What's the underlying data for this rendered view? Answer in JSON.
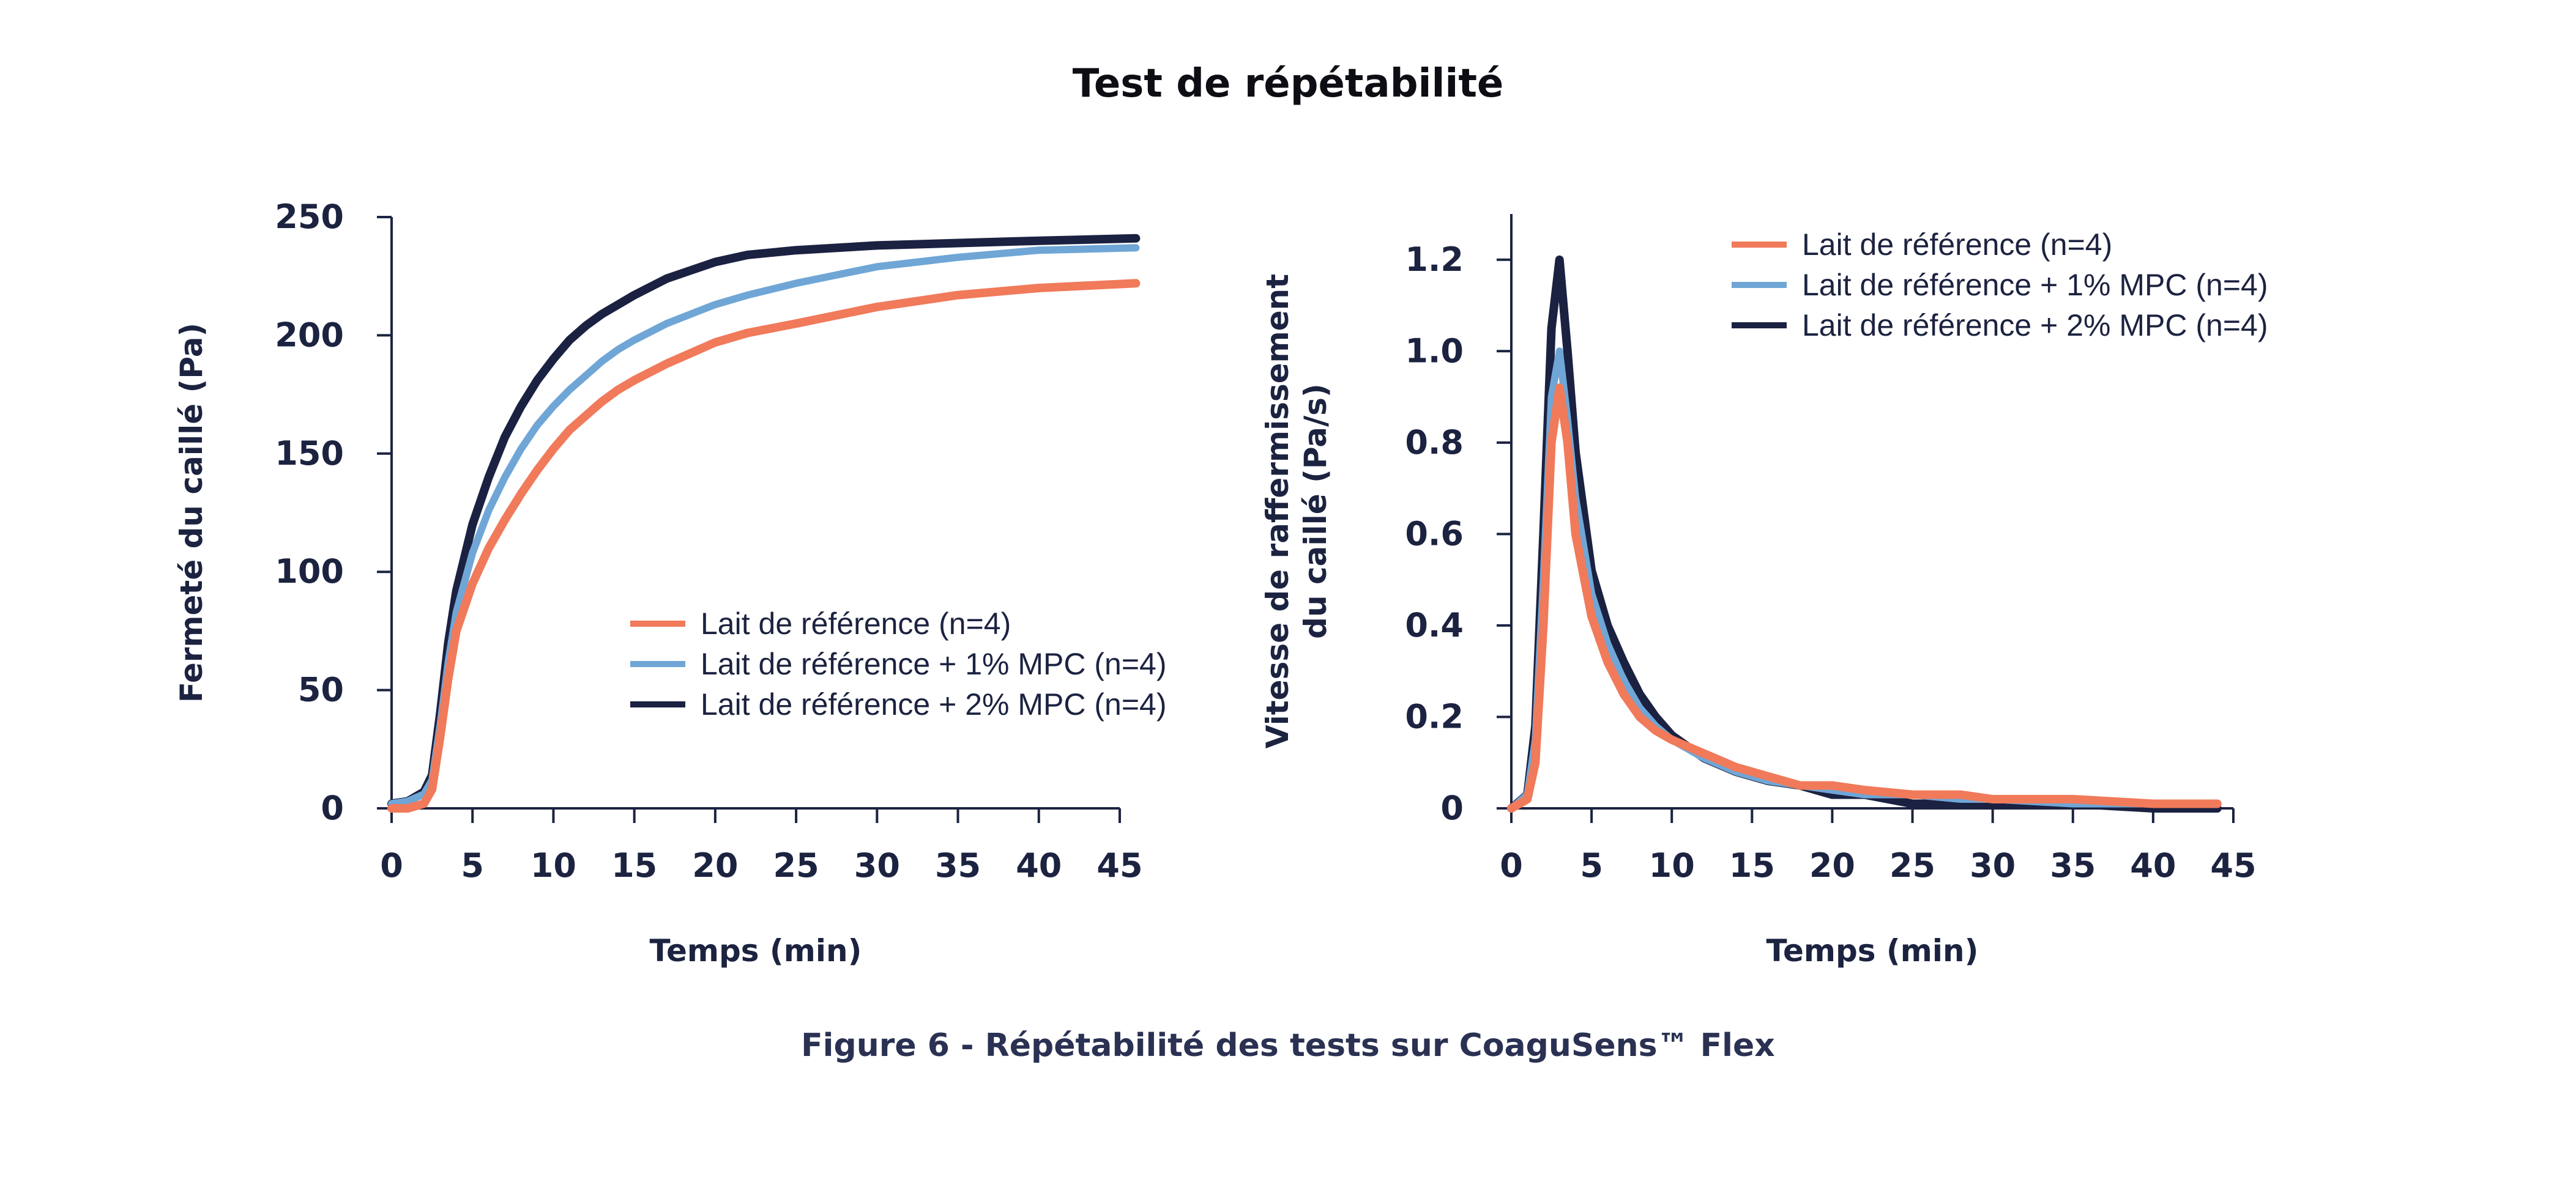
{
  "title": "Test de répétabilité",
  "caption": "Figure 6 - Répétabilité des tests sur  CoaguSens™ Flex",
  "colors": {
    "reference": "#f07a5a",
    "mpc1": "#6fa6d6",
    "mpc2": "#1b2141",
    "axis": "#1c2340"
  },
  "chart_data": [
    {
      "type": "line",
      "title": "",
      "xlabel": "Temps (min)",
      "ylabel": "Fermeté du caillé (Pa)",
      "xlim": [
        0,
        45
      ],
      "ylim": [
        0,
        250
      ],
      "xticks": [
        0,
        5,
        10,
        15,
        20,
        25,
        30,
        35,
        40,
        45
      ],
      "yticks": [
        0,
        50,
        100,
        150,
        200,
        250
      ],
      "legend_position": "lower-right",
      "series": [
        {
          "name": "Lait de référence (n=4)",
          "color_key": "reference",
          "x": [
            0,
            1,
            2,
            2.5,
            3,
            3.5,
            4,
            5,
            6,
            7,
            8,
            9,
            10,
            11,
            12,
            13,
            14,
            15,
            17,
            20,
            22,
            25,
            30,
            35,
            40,
            46
          ],
          "y": [
            0,
            0,
            2,
            8,
            30,
            55,
            75,
            95,
            110,
            122,
            133,
            143,
            152,
            160,
            166,
            172,
            177,
            181,
            188,
            197,
            201,
            205,
            212,
            217,
            220,
            222
          ]
        },
        {
          "name": "Lait de référence + 1% MPC (n=4)",
          "color_key": "mpc1",
          "x": [
            0,
            1,
            2,
            2.5,
            3,
            3.5,
            4,
            5,
            6,
            7,
            8,
            9,
            10,
            11,
            12,
            13,
            14,
            15,
            17,
            20,
            22,
            25,
            30,
            35,
            40,
            46
          ],
          "y": [
            2,
            3,
            6,
            12,
            35,
            62,
            83,
            108,
            126,
            140,
            152,
            162,
            170,
            177,
            183,
            189,
            194,
            198,
            205,
            213,
            217,
            222,
            229,
            233,
            236,
            237
          ]
        },
        {
          "name": "Lait de référence + 2% MPC (n=4)",
          "color_key": "mpc2",
          "x": [
            0,
            1,
            2,
            2.5,
            3,
            3.5,
            4,
            5,
            6,
            7,
            8,
            9,
            10,
            11,
            12,
            13,
            14,
            15,
            17,
            20,
            22,
            25,
            30,
            35,
            40,
            46
          ],
          "y": [
            2,
            3,
            7,
            14,
            40,
            70,
            92,
            120,
            140,
            157,
            170,
            181,
            190,
            198,
            204,
            209,
            213,
            217,
            224,
            231,
            234,
            236,
            238,
            239,
            240,
            241
          ]
        }
      ]
    },
    {
      "type": "line",
      "title": "",
      "xlabel": "Temps (min)",
      "ylabel": "Vitesse de raffermissement du caillé (Pa/s)",
      "ylabel_lines": [
        "Vitesse de raffermissement",
        "du caillé (Pa/s)"
      ],
      "xlim": [
        0,
        45
      ],
      "ylim": [
        0,
        1.3
      ],
      "xticks": [
        0,
        5,
        10,
        15,
        20,
        25,
        30,
        35,
        40,
        45
      ],
      "yticks": [
        0,
        0.2,
        0.4,
        0.6,
        0.8,
        1.0,
        1.2
      ],
      "ytick_labels": [
        "0",
        "0.2",
        "0.4",
        "0.6",
        "0.8",
        "1.0",
        "1.2"
      ],
      "legend_position": "top-right",
      "series": [
        {
          "name": "Lait de référence (n=4)",
          "color_key": "reference",
          "x": [
            0,
            1,
            1.5,
            2,
            2.5,
            3,
            3.5,
            4,
            5,
            6,
            7,
            8,
            9,
            10,
            12,
            14,
            16,
            18,
            20,
            22,
            25,
            28,
            30,
            35,
            40,
            44
          ],
          "y": [
            0,
            0.02,
            0.1,
            0.4,
            0.8,
            0.92,
            0.8,
            0.6,
            0.42,
            0.32,
            0.25,
            0.2,
            0.17,
            0.15,
            0.12,
            0.09,
            0.07,
            0.05,
            0.05,
            0.04,
            0.03,
            0.03,
            0.02,
            0.02,
            0.01,
            0.01
          ]
        },
        {
          "name": "Lait de référence + 1% MPC (n=4)",
          "color_key": "mpc1",
          "x": [
            0,
            1,
            1.5,
            2,
            2.5,
            3,
            3.5,
            4,
            5,
            6,
            7,
            8,
            9,
            10,
            12,
            14,
            16,
            18,
            20,
            22,
            25,
            28,
            30,
            35,
            40,
            44
          ],
          "y": [
            0,
            0.03,
            0.15,
            0.5,
            0.9,
            1.0,
            0.85,
            0.68,
            0.47,
            0.36,
            0.28,
            0.22,
            0.18,
            0.15,
            0.11,
            0.08,
            0.06,
            0.05,
            0.04,
            0.03,
            0.03,
            0.02,
            0.02,
            0.01,
            0.01,
            0.01
          ]
        },
        {
          "name": "Lait de référence + 2% MPC (n=4)",
          "color_key": "mpc2",
          "x": [
            0,
            1,
            1.5,
            2,
            2.5,
            3,
            3.5,
            4,
            5,
            6,
            7,
            8,
            9,
            10,
            12,
            14,
            16,
            18,
            20,
            22,
            25,
            28,
            30,
            35,
            40,
            44
          ],
          "y": [
            0,
            0.03,
            0.18,
            0.6,
            1.05,
            1.2,
            1.0,
            0.78,
            0.52,
            0.4,
            0.32,
            0.25,
            0.2,
            0.16,
            0.11,
            0.08,
            0.06,
            0.05,
            0.03,
            0.03,
            0.01,
            0.01,
            0.01,
            0.01,
            0.0,
            0.0
          ]
        }
      ]
    }
  ]
}
